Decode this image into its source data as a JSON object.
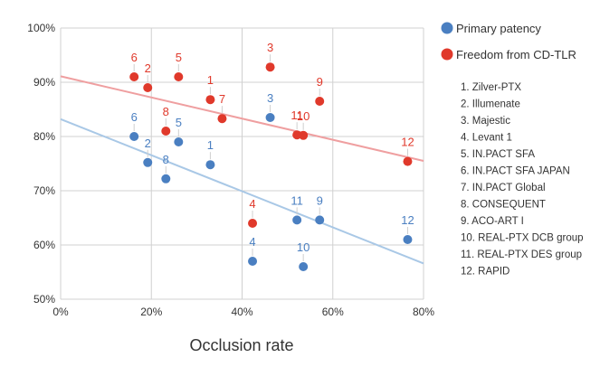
{
  "chart_data": {
    "type": "scatter",
    "xlabel": "Occlusion rate",
    "ylabel": "",
    "xlim": [
      0,
      80
    ],
    "ylim": [
      50,
      100
    ],
    "x_ticks": [
      "0%",
      "20%",
      "40%",
      "60%",
      "80%"
    ],
    "y_ticks": [
      "50%",
      "60%",
      "70%",
      "80%",
      "90%",
      "100%"
    ],
    "grid": true,
    "legend_position": "right",
    "colors": {
      "primary": "#4a7fc1",
      "freedom": "#e0392b",
      "primary_trend": "#a9c8e6",
      "freedom_trend": "#ef9fa0"
    },
    "series": [
      {
        "name": "Primary patency",
        "key": "primary",
        "points": [
          {
            "label": "1",
            "x": 33,
            "y": 74.8
          },
          {
            "label": "2",
            "x": 19.2,
            "y": 75.2
          },
          {
            "label": "3",
            "x": 46.2,
            "y": 83.5
          },
          {
            "label": "4",
            "x": 42.3,
            "y": 57
          },
          {
            "label": "5",
            "x": 26,
            "y": 79
          },
          {
            "label": "6",
            "x": 16.2,
            "y": 80
          },
          {
            "label": "8",
            "x": 23.2,
            "y": 72.2
          },
          {
            "label": "9",
            "x": 57.1,
            "y": 64.6
          },
          {
            "label": "10",
            "x": 53.5,
            "y": 56
          },
          {
            "label": "11",
            "x": 52.1,
            "y": 64.6
          },
          {
            "label": "12",
            "x": 76.5,
            "y": 61
          }
        ],
        "trend": [
          [
            0,
            83.2
          ],
          [
            80,
            56.6
          ]
        ]
      },
      {
        "name": "Freedom from CD-TLR",
        "key": "freedom",
        "points": [
          {
            "label": "1",
            "x": 33,
            "y": 86.8
          },
          {
            "label": "2",
            "x": 19.2,
            "y": 89
          },
          {
            "label": "3",
            "x": 46.2,
            "y": 92.8
          },
          {
            "label": "4",
            "x": 42.3,
            "y": 64
          },
          {
            "label": "5",
            "x": 26,
            "y": 91
          },
          {
            "label": "6",
            "x": 16.2,
            "y": 91
          },
          {
            "label": "7",
            "x": 35.6,
            "y": 83.3
          },
          {
            "label": "8",
            "x": 23.2,
            "y": 81
          },
          {
            "label": "9",
            "x": 57.1,
            "y": 86.5
          },
          {
            "label": "10",
            "x": 53.5,
            "y": 80.2
          },
          {
            "label": "11",
            "x": 52.1,
            "y": 80.3
          },
          {
            "label": "12",
            "x": 76.5,
            "y": 75.4
          }
        ],
        "trend": [
          [
            0,
            91.1
          ],
          [
            80,
            75.5
          ]
        ]
      }
    ],
    "study_list": [
      "1. Zilver-PTX",
      "2. Illumenate",
      "3. Majestic",
      "4. Levant 1",
      "5. IN.PACT SFA",
      "6. IN.PACT SFA JAPAN",
      "7. IN.PACT Global",
      "8. CONSEQUENT",
      "9. ACO-ART I",
      "10. REAL-PTX DCB group",
      "11. REAL-PTX DES group",
      "12. RAPID"
    ]
  }
}
